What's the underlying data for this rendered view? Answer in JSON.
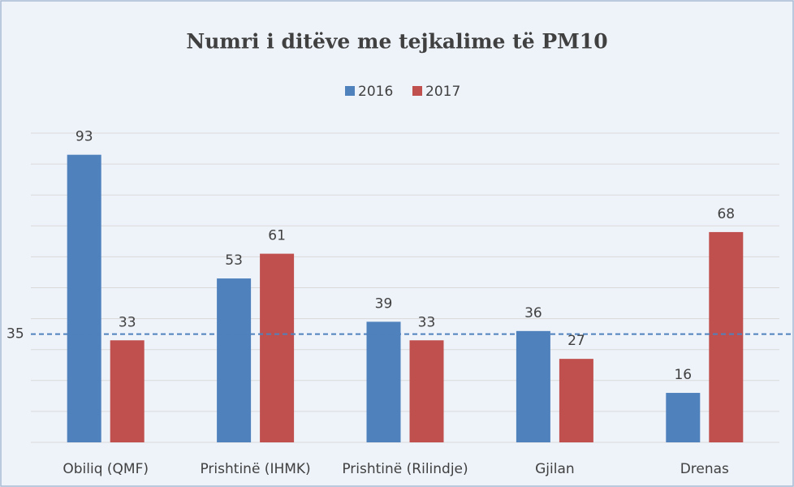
{
  "chart_data": {
    "type": "bar",
    "title": "Numri i ditëve me tejkalime të PM10",
    "categories": [
      "Obiliq (QMF)",
      "Prishtinë (IHMK)",
      "Prishtinë (Rilindje)",
      "Gjilan",
      "Drenas"
    ],
    "series": [
      {
        "name": "2016",
        "color": "#4f81bd",
        "values": [
          93,
          53,
          39,
          36,
          16
        ]
      },
      {
        "name": "2017",
        "color": "#c0504d",
        "values": [
          33,
          61,
          33,
          27,
          68
        ]
      }
    ],
    "reference_line": 35,
    "reference_color": "#4f81bd",
    "ylim": [
      0,
      100
    ],
    "yticks": [
      0,
      10,
      20,
      30,
      40,
      50,
      60,
      70,
      80,
      90,
      100
    ],
    "grid": true
  }
}
